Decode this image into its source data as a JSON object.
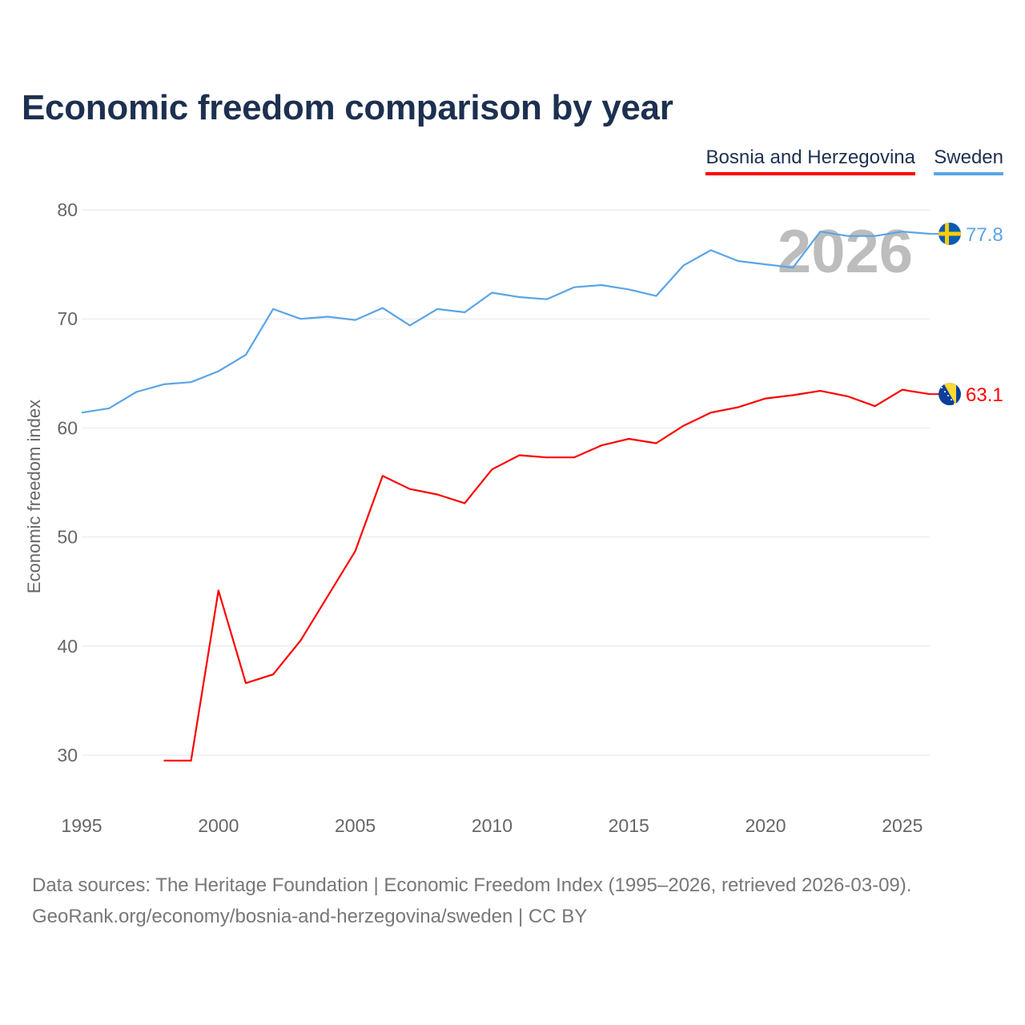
{
  "chart_data": {
    "type": "line",
    "title": "Economic freedom comparison by year",
    "xlabel": "",
    "ylabel": "Economic freedom index",
    "xlim": [
      1995,
      2026
    ],
    "ylim": [
      25,
      80
    ],
    "x_ticks": [
      1995,
      2000,
      2005,
      2010,
      2015,
      2020,
      2025
    ],
    "y_ticks": [
      30,
      40,
      50,
      60,
      70,
      80
    ],
    "grid": true,
    "legend_position": "top-right",
    "year_watermark": "2026",
    "series": [
      {
        "name": "Bosnia and Herzegovina",
        "color": "#ff0000",
        "end_label": "63.1",
        "flag": "bosnia-flag",
        "x": [
          1998,
          1999,
          2000,
          2001,
          2002,
          2003,
          2004,
          2005,
          2006,
          2007,
          2008,
          2009,
          2010,
          2011,
          2012,
          2013,
          2014,
          2015,
          2016,
          2017,
          2018,
          2019,
          2020,
          2021,
          2022,
          2023,
          2024,
          2025,
          2026
        ],
        "values": [
          29.5,
          29.5,
          45.1,
          36.6,
          37.4,
          40.5,
          44.6,
          48.7,
          55.6,
          54.4,
          53.9,
          53.1,
          56.2,
          57.5,
          57.3,
          57.3,
          58.4,
          59.0,
          58.6,
          60.2,
          61.4,
          61.9,
          62.7,
          63.0,
          63.4,
          62.9,
          62.0,
          63.5,
          63.1
        ]
      },
      {
        "name": "Sweden",
        "color": "#5aa4e8",
        "end_label": "77.8",
        "flag": "sweden-flag",
        "x": [
          1995,
          1996,
          1997,
          1998,
          1999,
          2000,
          2001,
          2002,
          2003,
          2004,
          2005,
          2006,
          2007,
          2008,
          2009,
          2010,
          2011,
          2012,
          2013,
          2014,
          2015,
          2016,
          2017,
          2018,
          2019,
          2020,
          2021,
          2022,
          2023,
          2024,
          2025,
          2026
        ],
        "values": [
          61.4,
          61.8,
          63.3,
          64.0,
          64.2,
          65.2,
          66.7,
          70.9,
          70.0,
          70.2,
          69.9,
          71.0,
          69.4,
          70.9,
          70.6,
          72.4,
          72.0,
          71.8,
          72.9,
          73.1,
          72.7,
          72.1,
          74.9,
          76.3,
          75.3,
          75.0,
          74.7,
          78.0,
          77.6,
          77.6,
          78.0,
          77.8
        ]
      }
    ]
  },
  "footer": {
    "source_line1": "Data sources: The Heritage Foundation | Economic Freedom Index (1995–2026, retrieved 2026-03-09).",
    "source_line2": "GeoRank.org/economy/bosnia-and-herzegovina/sweden | CC BY"
  }
}
